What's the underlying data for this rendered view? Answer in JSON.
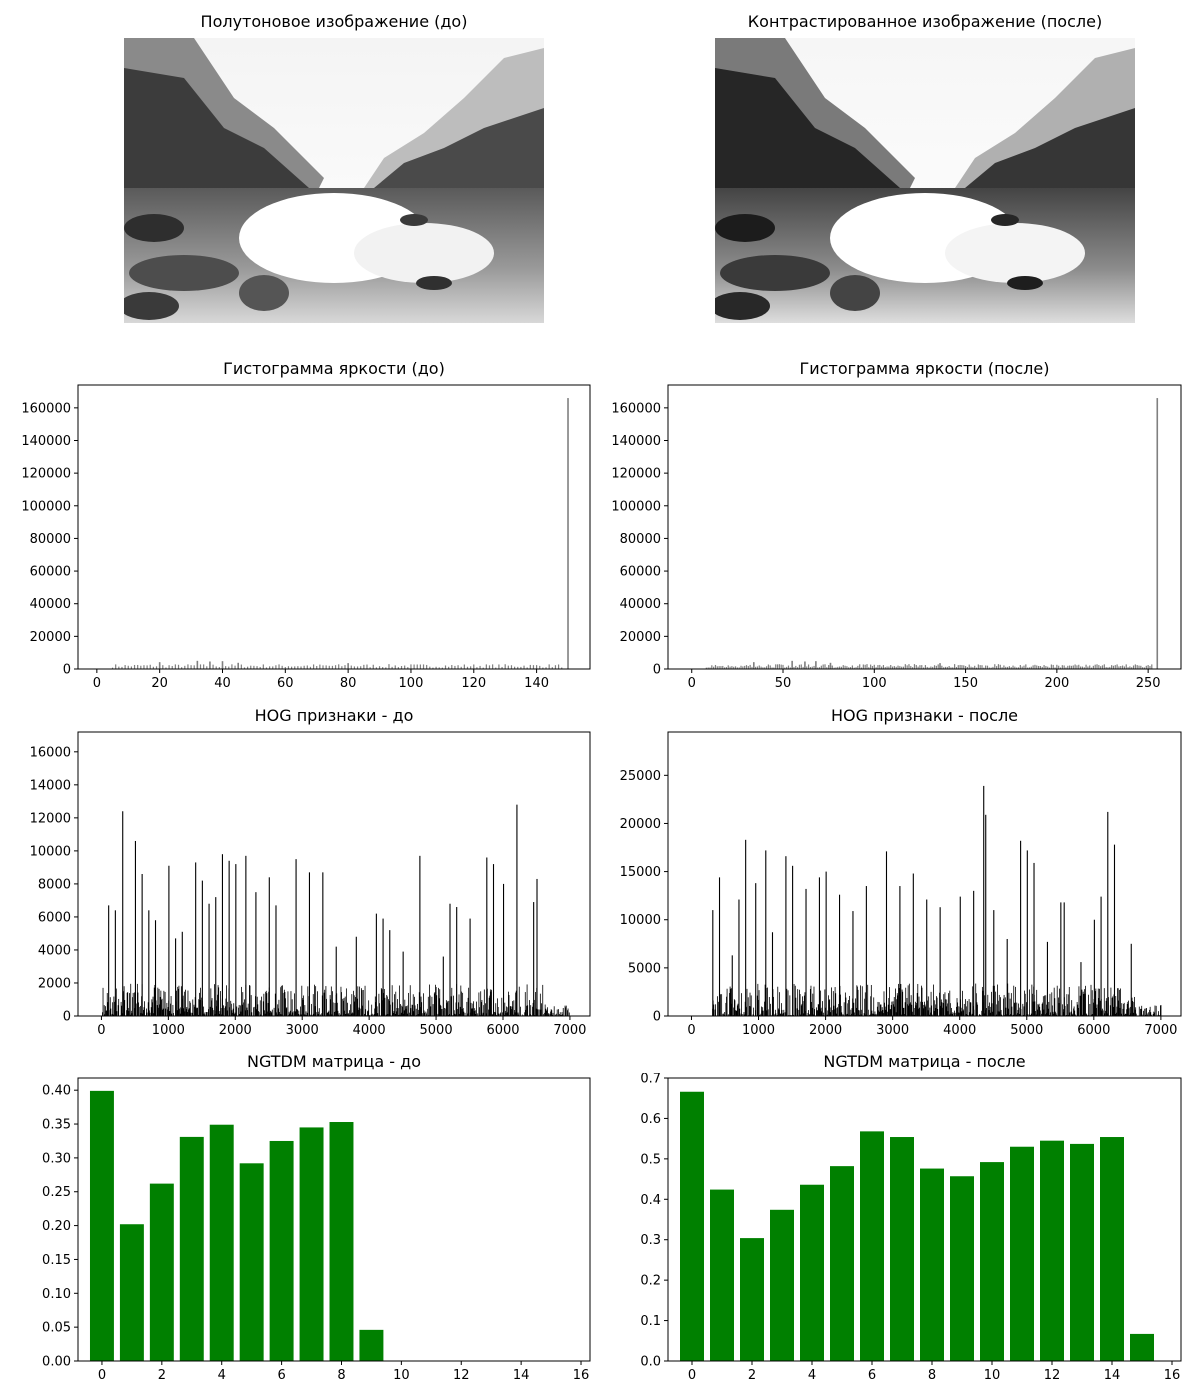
{
  "images": {
    "before": {
      "title": "Полутоновое изображение (до)"
    },
    "after": {
      "title": "Контрастированное изображение (после)"
    }
  },
  "colors": {
    "axis": "#000000",
    "hist_bar": "#808080",
    "hog_bar": "#000000",
    "ngtdm_bar": "#008000"
  },
  "chart_data": [
    {
      "id": "hist-before",
      "type": "bar",
      "title": "Гистограмма яркости (до)",
      "xlim": [
        -6,
        157
      ],
      "ylim": [
        0,
        174000
      ],
      "xticks": [
        0,
        20,
        40,
        60,
        80,
        100,
        120,
        140
      ],
      "yticks": [
        0,
        20000,
        40000,
        60000,
        80000,
        100000,
        120000,
        140000,
        160000
      ],
      "baseline_range": [
        5,
        148
      ],
      "baseline_level": 2400,
      "spikes": [
        {
          "x": 150,
          "y": 166000
        },
        {
          "x": 20,
          "y": 4200
        },
        {
          "x": 32,
          "y": 5000
        },
        {
          "x": 36,
          "y": 4600
        },
        {
          "x": 40,
          "y": 4800
        },
        {
          "x": 45,
          "y": 3800
        },
        {
          "x": 80,
          "y": 3600
        }
      ]
    },
    {
      "id": "hist-after",
      "type": "bar",
      "title": "Гистограмма яркости (после)",
      "xlim": [
        -13,
        268
      ],
      "ylim": [
        0,
        174000
      ],
      "xticks": [
        0,
        50,
        100,
        150,
        200,
        250
      ],
      "yticks": [
        0,
        20000,
        40000,
        60000,
        80000,
        100000,
        120000,
        140000,
        160000
      ],
      "baseline_range": [
        8,
        252
      ],
      "baseline_level": 2400,
      "spikes": [
        {
          "x": 255,
          "y": 166000
        },
        {
          "x": 34,
          "y": 4200
        },
        {
          "x": 55,
          "y": 5000
        },
        {
          "x": 62,
          "y": 4600
        },
        {
          "x": 68,
          "y": 4800
        },
        {
          "x": 76,
          "y": 3800
        },
        {
          "x": 136,
          "y": 3600
        }
      ]
    },
    {
      "id": "hog-before",
      "type": "bar",
      "title": "HOG признаки - до",
      "xlim": [
        -350,
        7300
      ],
      "ylim": [
        0,
        17200
      ],
      "xticks": [
        0,
        1000,
        2000,
        3000,
        4000,
        5000,
        6000,
        7000
      ],
      "yticks": [
        0,
        2000,
        4000,
        6000,
        8000,
        10000,
        12000,
        14000,
        16000
      ],
      "x_range": [
        0,
        7000
      ],
      "noise_level": 1500,
      "peaks": [
        {
          "x": 100,
          "y": 6700
        },
        {
          "x": 200,
          "y": 6400
        },
        {
          "x": 310,
          "y": 12400
        },
        {
          "x": 500,
          "y": 10600
        },
        {
          "x": 600,
          "y": 8600
        },
        {
          "x": 700,
          "y": 6400
        },
        {
          "x": 800,
          "y": 5800
        },
        {
          "x": 1000,
          "y": 9100
        },
        {
          "x": 1100,
          "y": 4700
        },
        {
          "x": 1200,
          "y": 5100
        },
        {
          "x": 1400,
          "y": 9300
        },
        {
          "x": 1500,
          "y": 8200
        },
        {
          "x": 1600,
          "y": 6800
        },
        {
          "x": 1700,
          "y": 7200
        },
        {
          "x": 1800,
          "y": 9800
        },
        {
          "x": 1900,
          "y": 9400
        },
        {
          "x": 2000,
          "y": 9200
        },
        {
          "x": 2150,
          "y": 9700
        },
        {
          "x": 2300,
          "y": 7500
        },
        {
          "x": 2500,
          "y": 8400
        },
        {
          "x": 2600,
          "y": 6700
        },
        {
          "x": 2900,
          "y": 9500
        },
        {
          "x": 3100,
          "y": 8700
        },
        {
          "x": 3300,
          "y": 8700
        },
        {
          "x": 3500,
          "y": 4200
        },
        {
          "x": 3800,
          "y": 4800
        },
        {
          "x": 4100,
          "y": 6200
        },
        {
          "x": 4200,
          "y": 5900
        },
        {
          "x": 4300,
          "y": 5200
        },
        {
          "x": 4500,
          "y": 3900
        },
        {
          "x": 4750,
          "y": 9700
        },
        {
          "x": 5100,
          "y": 3600
        },
        {
          "x": 5200,
          "y": 6800
        },
        {
          "x": 5300,
          "y": 6600
        },
        {
          "x": 5500,
          "y": 5900
        },
        {
          "x": 5750,
          "y": 9600
        },
        {
          "x": 5850,
          "y": 9200
        },
        {
          "x": 6000,
          "y": 8000
        },
        {
          "x": 6200,
          "y": 12800
        },
        {
          "x": 6500,
          "y": 8300
        },
        {
          "x": 6450,
          "y": 6900
        }
      ]
    },
    {
      "id": "hog-after",
      "type": "bar",
      "title": "HOG признаки - после",
      "xlim": [
        -350,
        7300
      ],
      "ylim": [
        0,
        29500
      ],
      "xticks": [
        0,
        1000,
        2000,
        3000,
        4000,
        5000,
        6000,
        7000
      ],
      "yticks": [
        0,
        5000,
        10000,
        15000,
        20000,
        25000
      ],
      "x_range": [
        300,
        7000
      ],
      "noise_level": 2600,
      "peaks": [
        {
          "x": 310,
          "y": 11000
        },
        {
          "x": 410,
          "y": 14400
        },
        {
          "x": 600,
          "y": 6300
        },
        {
          "x": 700,
          "y": 12100
        },
        {
          "x": 800,
          "y": 18300
        },
        {
          "x": 950,
          "y": 13800
        },
        {
          "x": 1100,
          "y": 17200
        },
        {
          "x": 1200,
          "y": 8700
        },
        {
          "x": 1400,
          "y": 16600
        },
        {
          "x": 1500,
          "y": 15600
        },
        {
          "x": 1700,
          "y": 13200
        },
        {
          "x": 1900,
          "y": 14400
        },
        {
          "x": 2000,
          "y": 15000
        },
        {
          "x": 2200,
          "y": 12600
        },
        {
          "x": 2400,
          "y": 10900
        },
        {
          "x": 2600,
          "y": 13500
        },
        {
          "x": 2900,
          "y": 17100
        },
        {
          "x": 3100,
          "y": 13500
        },
        {
          "x": 3300,
          "y": 14800
        },
        {
          "x": 3500,
          "y": 12100
        },
        {
          "x": 3700,
          "y": 11300
        },
        {
          "x": 4000,
          "y": 12400
        },
        {
          "x": 4200,
          "y": 13000
        },
        {
          "x": 4350,
          "y": 23900
        },
        {
          "x": 4380,
          "y": 20900
        },
        {
          "x": 4500,
          "y": 11000
        },
        {
          "x": 4700,
          "y": 8000
        },
        {
          "x": 4900,
          "y": 18200
        },
        {
          "x": 5000,
          "y": 17200
        },
        {
          "x": 5100,
          "y": 15900
        },
        {
          "x": 5300,
          "y": 7700
        },
        {
          "x": 5500,
          "y": 11800
        },
        {
          "x": 5550,
          "y": 11800
        },
        {
          "x": 5800,
          "y": 5600
        },
        {
          "x": 6000,
          "y": 10000
        },
        {
          "x": 6100,
          "y": 12400
        },
        {
          "x": 6200,
          "y": 21200
        },
        {
          "x": 6300,
          "y": 17800
        },
        {
          "x": 6550,
          "y": 7500
        }
      ]
    },
    {
      "id": "ngtdm-before",
      "type": "bar",
      "title": "NGTDM матрица - до",
      "xlim": [
        -0.8,
        16.3
      ],
      "ylim": [
        0,
        0.418
      ],
      "xticks": [
        0,
        2,
        4,
        6,
        8,
        10,
        12,
        14,
        16
      ],
      "yticks": [
        0.0,
        0.05,
        0.1,
        0.15,
        0.2,
        0.25,
        0.3,
        0.35,
        0.4
      ],
      "ytick_labels": [
        "0.00",
        "0.05",
        "0.10",
        "0.15",
        "0.20",
        "0.25",
        "0.30",
        "0.35",
        "0.40"
      ],
      "x": [
        0,
        1,
        2,
        3,
        4,
        5,
        6,
        7,
        8,
        9
      ],
      "values": [
        0.399,
        0.202,
        0.262,
        0.331,
        0.349,
        0.292,
        0.325,
        0.345,
        0.353,
        0.046
      ]
    },
    {
      "id": "ngtdm-after",
      "type": "bar",
      "title": "NGTDM матрица - после",
      "xlim": [
        -0.8,
        16.3
      ],
      "ylim": [
        0,
        0.7
      ],
      "xticks": [
        0,
        2,
        4,
        6,
        8,
        10,
        12,
        14,
        16
      ],
      "yticks": [
        0.0,
        0.1,
        0.2,
        0.3,
        0.4,
        0.5,
        0.6,
        0.7
      ],
      "ytick_labels": [
        "0.0",
        "0.1",
        "0.2",
        "0.3",
        "0.4",
        "0.5",
        "0.6",
        "0.7"
      ],
      "x": [
        0,
        1,
        2,
        3,
        4,
        5,
        6,
        7,
        8,
        9,
        10,
        11,
        12,
        13,
        14,
        15
      ],
      "values": [
        0.666,
        0.424,
        0.304,
        0.374,
        0.436,
        0.482,
        0.568,
        0.554,
        0.476,
        0.457,
        0.492,
        0.53,
        0.545,
        0.537,
        0.554,
        0.067
      ]
    }
  ]
}
